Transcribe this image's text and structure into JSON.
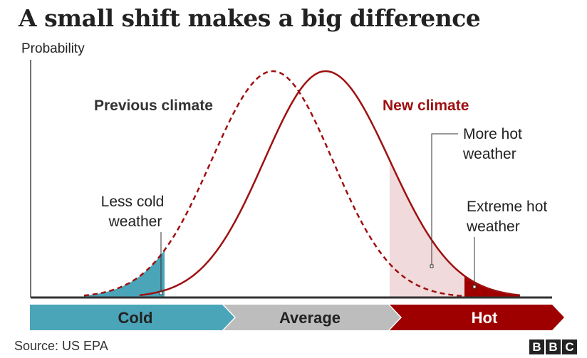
{
  "title": "A small shift makes a big difference",
  "y_axis_label": "Probability",
  "curves": {
    "previous_label": "Previous climate",
    "new_label": "New climate"
  },
  "annotations": {
    "less_cold_line1": "Less cold",
    "less_cold_line2": "weather",
    "more_hot_line1": "More hot",
    "more_hot_line2": "weather",
    "extreme_hot_line1": "Extreme hot",
    "extreme_hot_line2": "weather"
  },
  "bands": {
    "cold": "Cold",
    "average": "Average",
    "hot": "Hot"
  },
  "source": "Source: US EPA",
  "logo_letters": [
    "B",
    "B",
    "C"
  ],
  "colors": {
    "cold": "#4aa5b8",
    "average": "#bdbdbd",
    "hot": "#9e0000",
    "hot_light": "#f1dadb",
    "curve": "#9e1010",
    "text": "#222222"
  }
}
